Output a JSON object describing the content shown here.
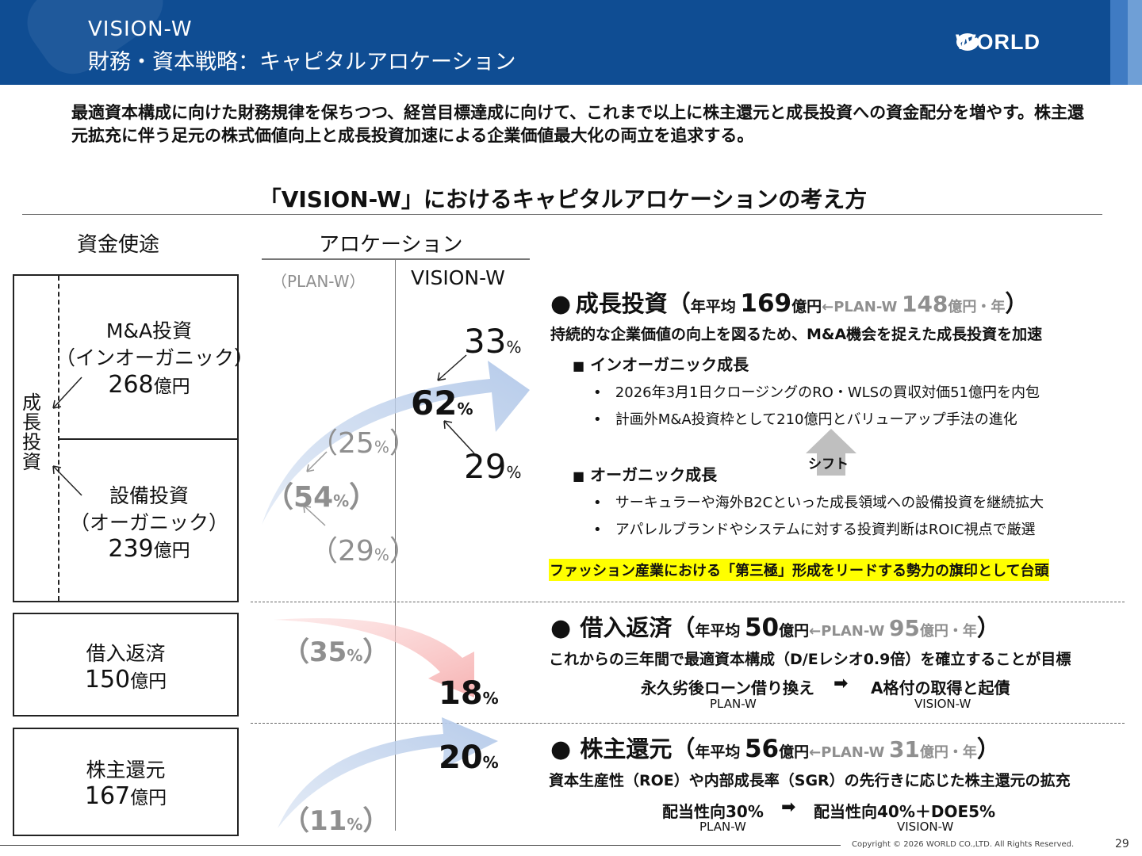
{
  "header": {
    "line1": "VISION-W",
    "line2": "財務・資本戦略：キャピタルアロケーション",
    "logo_text": "WORLD"
  },
  "lead": "最適資本構成に向けた財務規律を保ちつつ、経営目標達成に向けて、これまで以上に株主還元と成長投資への資金配分を増やす。株主還元拡充に伴う足元の株式価値向上と成長投資加速による企業価値最大化の両立を追求する。",
  "subtitle": "「VISION-W」におけるキャピタルアロケーションの考え方",
  "columns": {
    "uses": "資金使途",
    "allocation": "アロケーション",
    "plan": "（PLAN-W）",
    "vision": "VISION-W"
  },
  "left": {
    "growth_vertical": "成長投資",
    "ma_title": "M&A投資",
    "ma_sub": "（インオーガニック）",
    "ma_value": "268",
    "capex_title": "設備投資",
    "capex_sub": "（オーガニック）",
    "capex_value": "239",
    "debt_title": "借入返済",
    "debt_value": "150",
    "sh_title": "株主還元",
    "sh_value": "167",
    "unit": "億円"
  },
  "alloc": {
    "pct": "%",
    "v_ma": "33",
    "v_growth": "62",
    "v_capex": "29",
    "p_ma": "25",
    "p_growth": "54",
    "p_capex": "29",
    "p_debt": "35",
    "v_debt": "18",
    "p_sh": "11",
    "v_sh": "20"
  },
  "growth": {
    "title": "成長投資",
    "avg_label": "年平均",
    "avg_value": "169",
    "avg_unit": "億円",
    "arrow_plan": "←PLAN-W",
    "plan_value": "148",
    "plan_unit": "億円・年",
    "desc": "持続的な企業価値の向上を図るため、M&A機会を捉えた成長投資を加速",
    "inorganic": "インオーガニック成長",
    "inorganic_items": [
      "2026年3月1日クロージングのRO・WLSの買収対価51億円を内包",
      "計画外M&A投資枠として210億円とバリューアップ手法の進化"
    ],
    "shift": "シフト",
    "organic": "オーガニック成長",
    "organic_items": [
      "サーキュラーや海外B2Cといった成長領域への設備投資を継続拡大",
      "アパレルブランドやシステムに対する投資判断はROIC視点で厳選"
    ],
    "highlight": "ファッション産業における「第三極」形成をリードする勢力の旗印として台頭"
  },
  "debt": {
    "title": "借入返済",
    "avg_label": "年平均",
    "avg_value": "50",
    "avg_unit": "億円",
    "arrow_plan": "←PLAN-W",
    "plan_value": "95",
    "plan_unit": "億円・年",
    "desc": "これからの三年間で最適資本構成（D/Eレシオ0.9倍）を確立することが目標",
    "from": "永久劣後ローン借り換え",
    "to": "A格付の取得と起債",
    "from_label": "PLAN-W",
    "to_label": "VISION-W"
  },
  "shareholder": {
    "title": "株主還元",
    "avg_label": "年平均",
    "avg_value": "56",
    "avg_unit": "億円",
    "arrow_plan": "←PLAN-W",
    "plan_value": "31",
    "plan_unit": "億円・年",
    "desc": "資本生産性（ROE）や内部成長率（SGR）の先行きに応じた株主還元の拡充",
    "from": "配当性向30%",
    "to": "配当性向40%＋DOE5%",
    "from_label": "PLAN-W",
    "to_label": "VISION-W"
  },
  "footer": {
    "copyright": "Copyright © 2026 WORLD CO.,LTD. All Rights Reserved.",
    "page": "29"
  }
}
